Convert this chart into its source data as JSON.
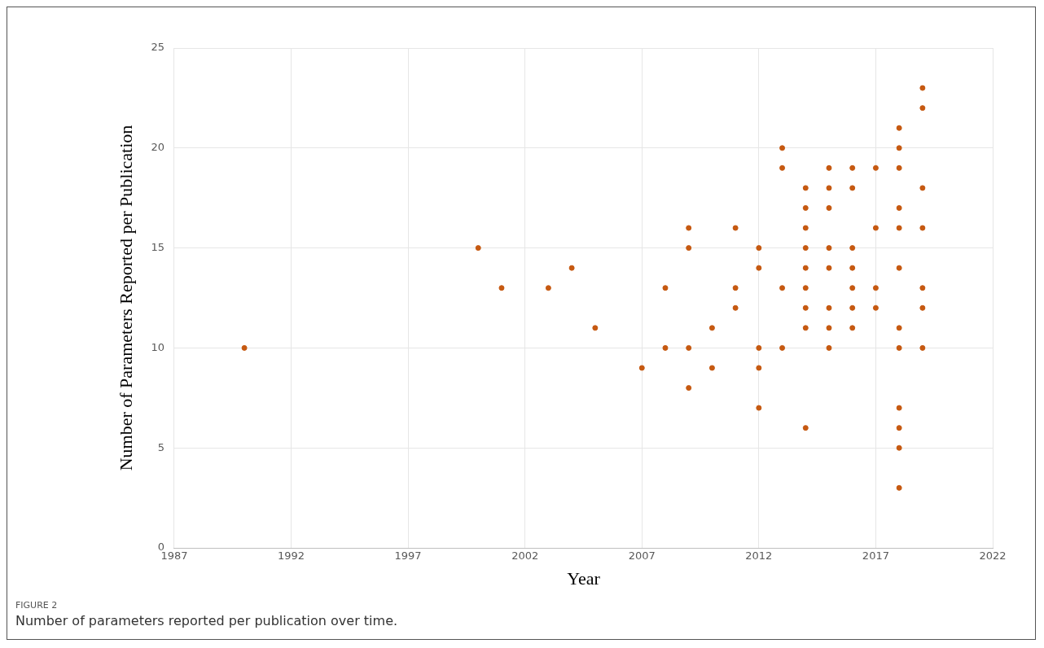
{
  "chart_data": {
    "type": "scatter",
    "xlabel": "Year",
    "ylabel": "Number of Parameters Reported per Publication",
    "x": [
      1990,
      2000,
      2001,
      2003,
      2004,
      2005,
      2007,
      2008,
      2008,
      2009,
      2009,
      2009,
      2009,
      2010,
      2010,
      2011,
      2011,
      2011,
      2012,
      2012,
      2012,
      2012,
      2012,
      2013,
      2013,
      2013,
      2013,
      2014,
      2014,
      2014,
      2014,
      2014,
      2014,
      2014,
      2014,
      2014,
      2015,
      2015,
      2015,
      2015,
      2015,
      2015,
      2015,
      2015,
      2016,
      2016,
      2016,
      2016,
      2016,
      2016,
      2016,
      2017,
      2017,
      2017,
      2017,
      2018,
      2018,
      2018,
      2018,
      2018,
      2018,
      2018,
      2018,
      2018,
      2018,
      2018,
      2018,
      2019,
      2019,
      2019,
      2019,
      2019,
      2019,
      2019
    ],
    "values": [
      10,
      15,
      13,
      13,
      14,
      11,
      9,
      13,
      10,
      16,
      15,
      10,
      8,
      11,
      9,
      16,
      13,
      12,
      15,
      14,
      10,
      9,
      7,
      20,
      19,
      13,
      10,
      18,
      17,
      16,
      15,
      14,
      13,
      12,
      11,
      6,
      19,
      18,
      17,
      15,
      14,
      12,
      11,
      10,
      19,
      18,
      15,
      14,
      13,
      12,
      11,
      19,
      16,
      13,
      12,
      21,
      20,
      19,
      17,
      16,
      14,
      11,
      10,
      7,
      6,
      5,
      3,
      23,
      22,
      18,
      16,
      13,
      12,
      10
    ],
    "color": "#c65911",
    "marker": "circle",
    "xlim": [
      1987,
      2022
    ],
    "xticks": [
      1987,
      1992,
      1997,
      2002,
      2007,
      2012,
      2017,
      2022
    ],
    "ylim": [
      0,
      25
    ],
    "yticks": [
      0,
      5,
      10,
      15,
      20,
      25
    ],
    "grid": true,
    "legend": false,
    "annotations": [
      "FIGURE 2",
      "Number of parameters reported per publication over time."
    ]
  }
}
